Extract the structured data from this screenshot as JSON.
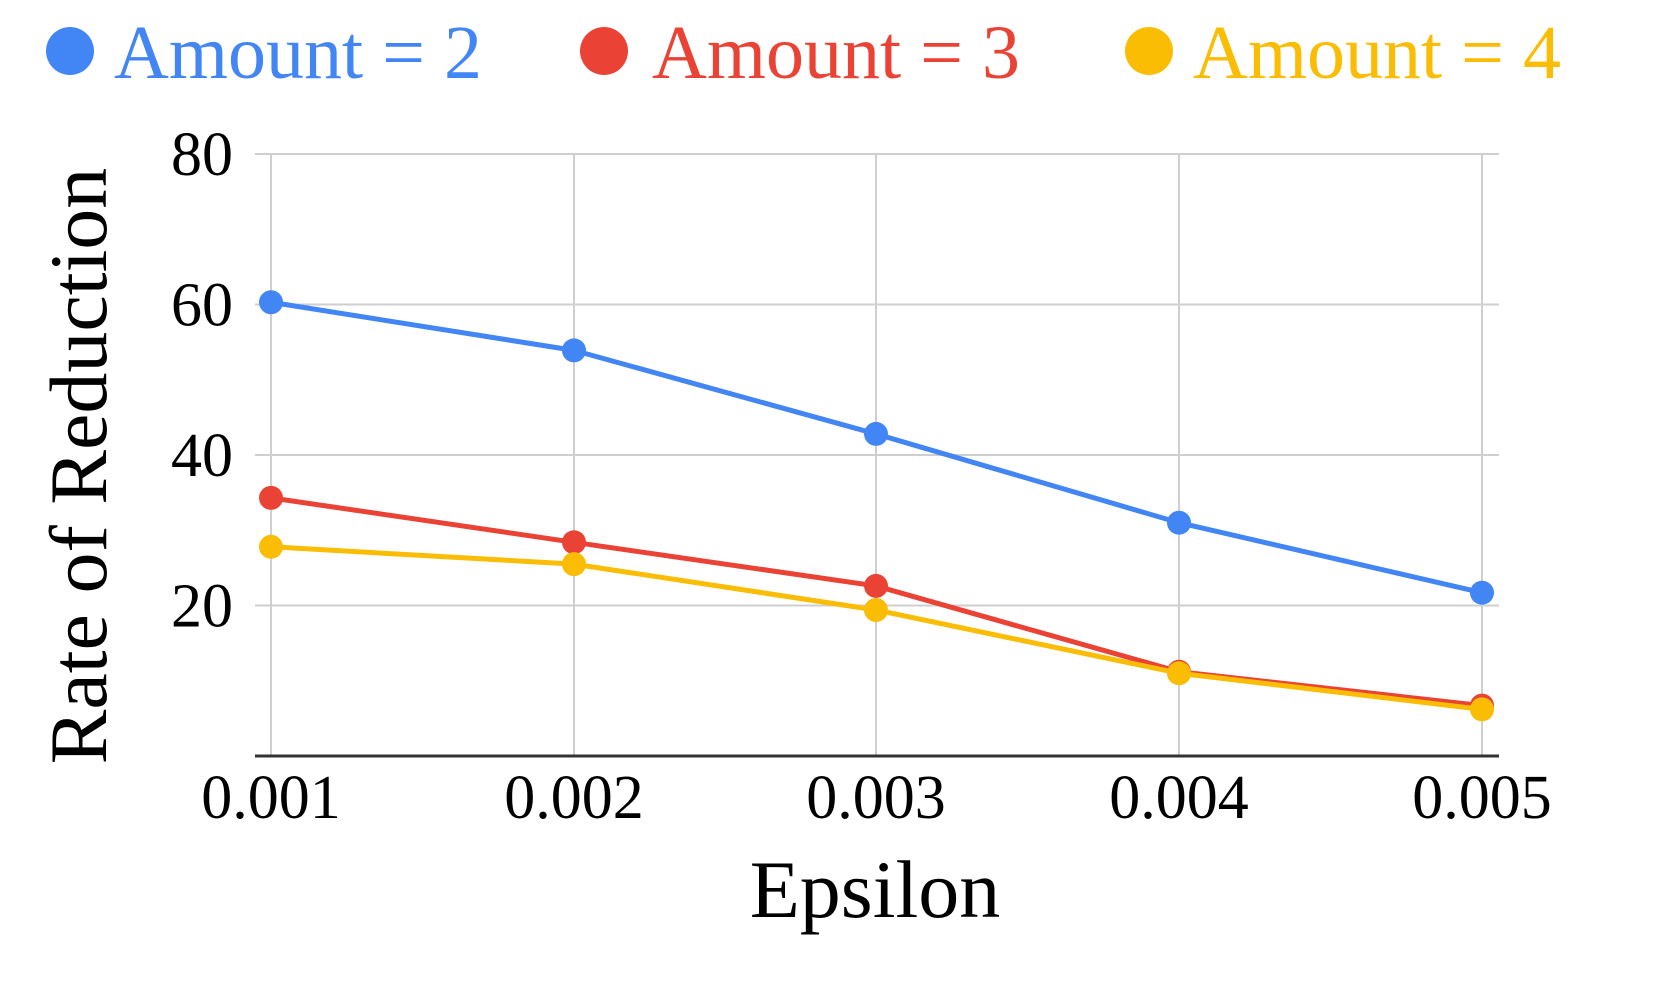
{
  "chart_data": {
    "type": "line",
    "title": "",
    "xlabel": "Epsilon",
    "ylabel": "Rate of Reduction",
    "x": [
      "0.001",
      "0.002",
      "0.003",
      "0.004",
      "0.005"
    ],
    "xlim": [
      0.001,
      0.005
    ],
    "ylim": [
      0,
      80
    ],
    "yticks": [
      20,
      40,
      60,
      80
    ],
    "grid": true,
    "legend_position": "top",
    "series": [
      {
        "name": "Amount = 2",
        "color": "#4285F4",
        "values": [
          60.3,
          53.9,
          42.8,
          31.0,
          21.7
        ]
      },
      {
        "name": "Amount = 3",
        "color": "#EA4335",
        "values": [
          34.3,
          28.4,
          22.6,
          11.2,
          6.7
        ]
      },
      {
        "name": "Amount = 4",
        "color": "#FBBC04",
        "values": [
          27.8,
          25.5,
          19.4,
          11.0,
          6.2
        ]
      }
    ]
  }
}
